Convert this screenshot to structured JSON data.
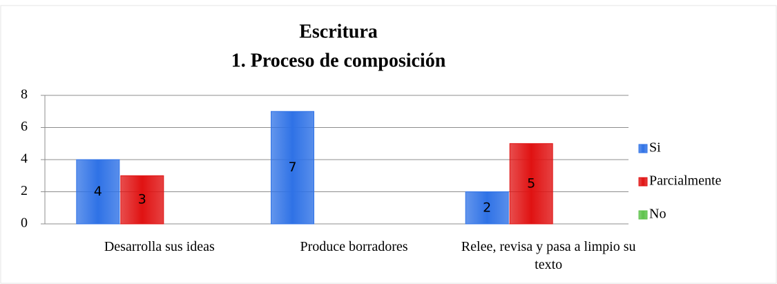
{
  "chart_data": {
    "type": "bar",
    "title": "Escritura",
    "subtitle": "1. Proceso de composición",
    "categories": [
      "Desarrolla sus ideas",
      "Produce borradores",
      "Relee, revisa y pasa a limpio su texto"
    ],
    "series": [
      {
        "name": "Si",
        "color": "#2f72e6",
        "values": [
          4,
          7,
          2
        ]
      },
      {
        "name": "Parcialmente",
        "color": "#e01212",
        "values": [
          3,
          0,
          5
        ]
      },
      {
        "name": "No",
        "color": "#5cc24a",
        "values": [
          0,
          0,
          0
        ]
      }
    ],
    "ylim": [
      0,
      8
    ],
    "yticks": [
      0,
      2,
      4,
      6,
      8
    ],
    "grid": true,
    "legend": "right"
  }
}
